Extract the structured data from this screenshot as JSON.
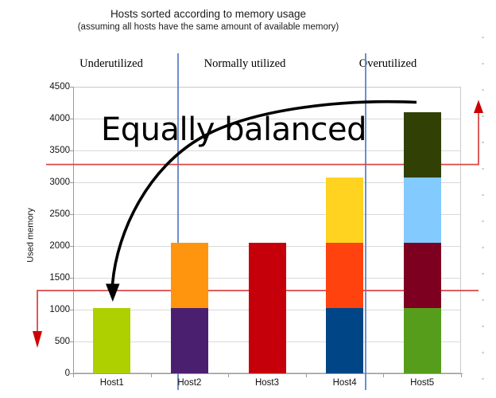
{
  "annotations": {
    "equally_balanced": "Equally balanced",
    "regions": [
      "Underutilized",
      "Normally utilized",
      "Overutilized"
    ]
  },
  "chart_data": {
    "type": "bar",
    "stacked": true,
    "title": "Hosts sorted according to memory usage",
    "subtitle": "(assuming all hosts have the same amount of available memory)",
    "ylabel": "Used memory",
    "ylim": [
      0,
      4500
    ],
    "ytick_step": 500,
    "grid": true,
    "legend": "none",
    "categories": [
      "Host1",
      "Host2",
      "Host3",
      "Host4",
      "Host5"
    ],
    "bars": [
      {
        "category": "Host1",
        "total": 1024,
        "segments": [
          {
            "value": 1024,
            "color": "#AECF00"
          }
        ]
      },
      {
        "category": "Host2",
        "total": 2048,
        "segments": [
          {
            "value": 1024,
            "color": "#4B1F6F"
          },
          {
            "value": 1024,
            "color": "#FF950E"
          }
        ]
      },
      {
        "category": "Host3",
        "total": 2048,
        "segments": [
          {
            "value": 2048,
            "color": "#C5000B"
          }
        ]
      },
      {
        "category": "Host4",
        "total": 3072,
        "segments": [
          {
            "value": 1024,
            "color": "#004586"
          },
          {
            "value": 1024,
            "color": "#FF420E"
          },
          {
            "value": 1024,
            "color": "#FFD320"
          }
        ]
      },
      {
        "category": "Host5",
        "total": 4096,
        "segments": [
          {
            "value": 1024,
            "color": "#579D1C"
          },
          {
            "value": 1024,
            "color": "#7E0021"
          },
          {
            "value": 1024,
            "color": "#83CAFF"
          },
          {
            "value": 1024,
            "color": "#314004"
          }
        ]
      }
    ],
    "threshold_lines": [
      {
        "value": 3280,
        "color": "#D84848",
        "arrow_color": "#CC0000",
        "arrow": "up-right"
      },
      {
        "value": 1300,
        "color": "#D84848",
        "arrow_color": "#CC0000",
        "arrow": "down-left"
      }
    ],
    "region_dividers": {
      "color": "#5C83C6"
    },
    "annotation_arrow_color": "#000000"
  }
}
